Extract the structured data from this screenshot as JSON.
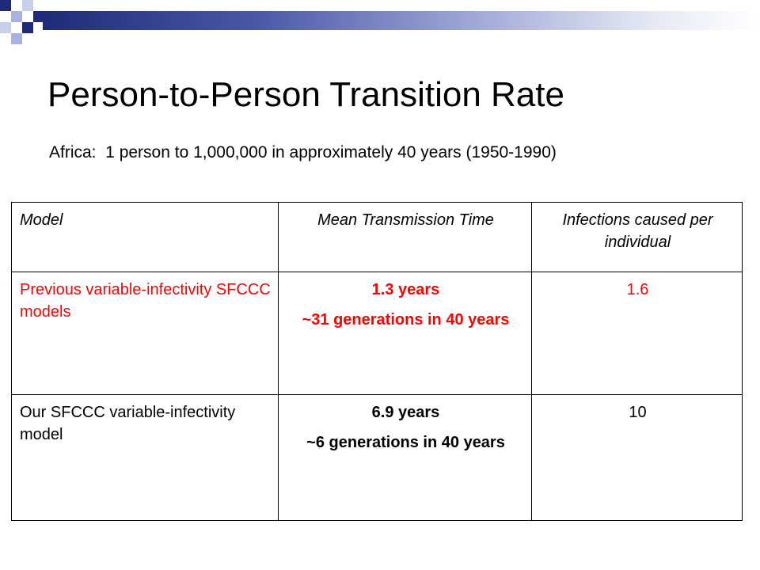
{
  "slide": {
    "title": "Person-to-Person Transition Rate",
    "subtitle": "Africa:  1 person to 1,000,000 in approximately 40 years (1950-1990)"
  },
  "colors": {
    "accent_dark": "#1f2a7a",
    "accent_light": "#a8b2e0",
    "highlight_red": "#ff0000"
  },
  "table": {
    "headers": [
      "Model",
      "Mean Transmission Time",
      "Infections caused per individual"
    ],
    "rows": [
      {
        "model": "Previous variable-infectivity SFCCC models",
        "mean_time": "1.3 years",
        "generations": "~31 generations in 40 years",
        "infections": "1.6"
      },
      {
        "model": "Our SFCCC variable-infectivity model",
        "mean_time": "6.9 years",
        "generations": "~6 generations in 40 years",
        "infections": "10"
      }
    ]
  }
}
